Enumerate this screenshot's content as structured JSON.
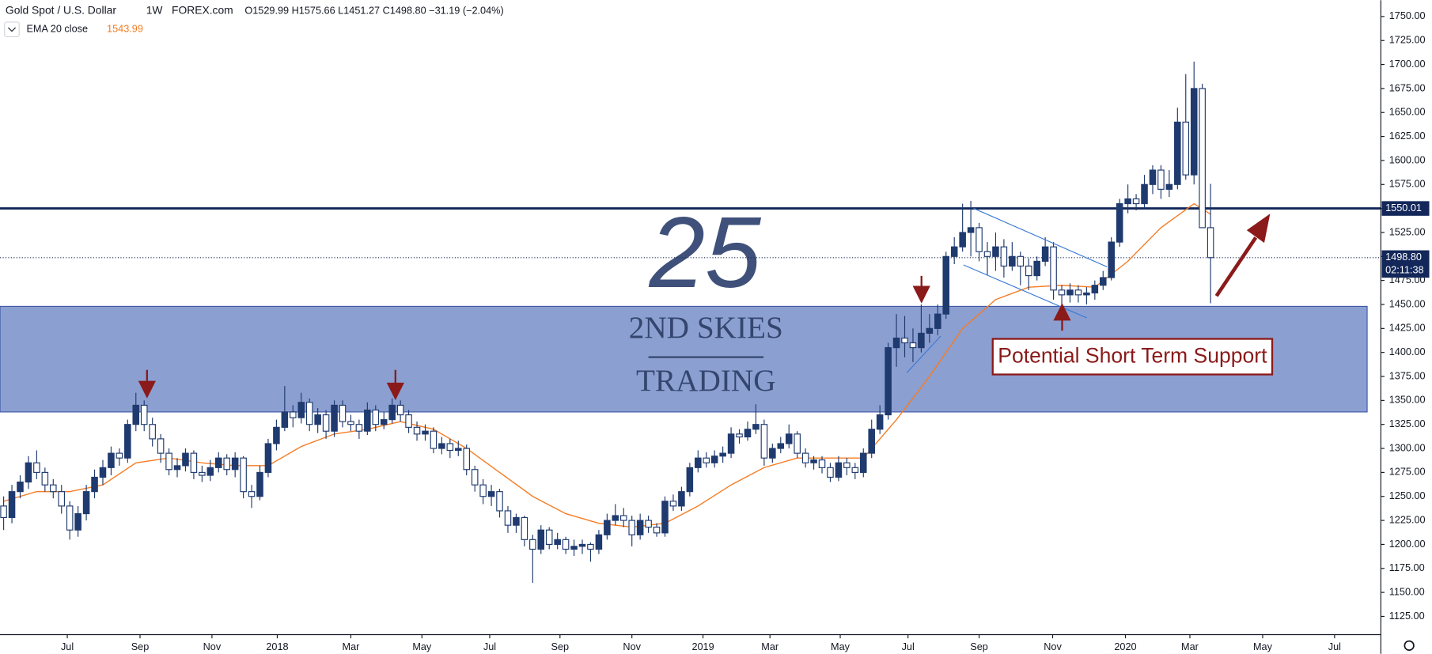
{
  "chart_data": {
    "type": "candlestick",
    "header": {
      "symbol": "Gold Spot / U.S. Dollar",
      "interval": "1W",
      "source": "FOREX.com",
      "ohlc": "O1529.99 H1575.66 L1451.27 C1498.80 −31.19 (−2.04%)"
    },
    "up_color": "#1f3a6e",
    "down_color": "#ffffff",
    "candles": [
      [
        1240,
        1250,
        1215,
        1228
      ],
      [
        1228,
        1262,
        1222,
        1255
      ],
      [
        1255,
        1272,
        1248,
        1265
      ],
      [
        1265,
        1292,
        1258,
        1285
      ],
      [
        1285,
        1298,
        1268,
        1275
      ],
      [
        1275,
        1280,
        1255,
        1262
      ],
      [
        1262,
        1268,
        1248,
        1255
      ],
      [
        1255,
        1262,
        1232,
        1240
      ],
      [
        1240,
        1245,
        1205,
        1215
      ],
      [
        1215,
        1240,
        1208,
        1232
      ],
      [
        1232,
        1262,
        1225,
        1255
      ],
      [
        1255,
        1278,
        1248,
        1270
      ],
      [
        1270,
        1288,
        1262,
        1280
      ],
      [
        1280,
        1302,
        1272,
        1295
      ],
      [
        1295,
        1300,
        1282,
        1290
      ],
      [
        1290,
        1330,
        1285,
        1325
      ],
      [
        1325,
        1358,
        1318,
        1345
      ],
      [
        1345,
        1350,
        1318,
        1325
      ],
      [
        1325,
        1332,
        1302,
        1310
      ],
      [
        1310,
        1315,
        1285,
        1295
      ],
      [
        1295,
        1300,
        1272,
        1278
      ],
      [
        1278,
        1290,
        1270,
        1282
      ],
      [
        1282,
        1300,
        1276,
        1295
      ],
      [
        1295,
        1298,
        1268,
        1275
      ],
      [
        1275,
        1282,
        1265,
        1272
      ],
      [
        1272,
        1288,
        1266,
        1280
      ],
      [
        1280,
        1296,
        1275,
        1290
      ],
      [
        1290,
        1294,
        1272,
        1278
      ],
      [
        1278,
        1296,
        1270,
        1290
      ],
      [
        1290,
        1292,
        1248,
        1255
      ],
      [
        1255,
        1262,
        1238,
        1250
      ],
      [
        1250,
        1282,
        1246,
        1275
      ],
      [
        1275,
        1310,
        1270,
        1305
      ],
      [
        1305,
        1330,
        1298,
        1322
      ],
      [
        1322,
        1365,
        1318,
        1338
      ],
      [
        1338,
        1345,
        1322,
        1332
      ],
      [
        1332,
        1358,
        1326,
        1348
      ],
      [
        1348,
        1352,
        1318,
        1325
      ],
      [
        1325,
        1342,
        1316,
        1335
      ],
      [
        1335,
        1340,
        1310,
        1318
      ],
      [
        1318,
        1350,
        1312,
        1345
      ],
      [
        1345,
        1350,
        1322,
        1328
      ],
      [
        1328,
        1335,
        1318,
        1325
      ],
      [
        1325,
        1330,
        1310,
        1318
      ],
      [
        1318,
        1348,
        1314,
        1340
      ],
      [
        1340,
        1345,
        1318,
        1325
      ],
      [
        1325,
        1338,
        1320,
        1330
      ],
      [
        1330,
        1352,
        1326,
        1345
      ],
      [
        1345,
        1350,
        1328,
        1335
      ],
      [
        1335,
        1340,
        1316,
        1322
      ],
      [
        1322,
        1328,
        1308,
        1315
      ],
      [
        1315,
        1325,
        1308,
        1318
      ],
      [
        1318,
        1322,
        1295,
        1300
      ],
      [
        1300,
        1312,
        1294,
        1305
      ],
      [
        1305,
        1310,
        1290,
        1298
      ],
      [
        1298,
        1308,
        1292,
        1300
      ],
      [
        1300,
        1304,
        1272,
        1278
      ],
      [
        1278,
        1282,
        1255,
        1262
      ],
      [
        1262,
        1268,
        1242,
        1250
      ],
      [
        1250,
        1262,
        1240,
        1255
      ],
      [
        1255,
        1258,
        1228,
        1235
      ],
      [
        1235,
        1240,
        1212,
        1220
      ],
      [
        1220,
        1232,
        1212,
        1228
      ],
      [
        1228,
        1230,
        1198,
        1205
      ],
      [
        1205,
        1210,
        1160,
        1195
      ],
      [
        1195,
        1220,
        1190,
        1215
      ],
      [
        1215,
        1218,
        1195,
        1200
      ],
      [
        1200,
        1212,
        1195,
        1205
      ],
      [
        1205,
        1208,
        1190,
        1195
      ],
      [
        1195,
        1205,
        1188,
        1198
      ],
      [
        1198,
        1205,
        1190,
        1200
      ],
      [
        1200,
        1202,
        1182,
        1195
      ],
      [
        1195,
        1215,
        1190,
        1210
      ],
      [
        1210,
        1232,
        1205,
        1225
      ],
      [
        1225,
        1242,
        1220,
        1230
      ],
      [
        1230,
        1238,
        1218,
        1225
      ],
      [
        1225,
        1230,
        1198,
        1210
      ],
      [
        1210,
        1232,
        1205,
        1225
      ],
      [
        1225,
        1230,
        1212,
        1218
      ],
      [
        1218,
        1222,
        1208,
        1212
      ],
      [
        1212,
        1250,
        1208,
        1245
      ],
      [
        1245,
        1252,
        1235,
        1240
      ],
      [
        1240,
        1260,
        1235,
        1255
      ],
      [
        1255,
        1285,
        1250,
        1280
      ],
      [
        1280,
        1298,
        1275,
        1290
      ],
      [
        1290,
        1296,
        1280,
        1285
      ],
      [
        1285,
        1298,
        1280,
        1292
      ],
      [
        1292,
        1302,
        1285,
        1295
      ],
      [
        1295,
        1322,
        1290,
        1315
      ],
      [
        1315,
        1320,
        1305,
        1312
      ],
      [
        1312,
        1328,
        1308,
        1320
      ],
      [
        1320,
        1346,
        1315,
        1325
      ],
      [
        1325,
        1330,
        1282,
        1290
      ],
      [
        1290,
        1305,
        1285,
        1300
      ],
      [
        1300,
        1312,
        1295,
        1305
      ],
      [
        1305,
        1325,
        1300,
        1315
      ],
      [
        1315,
        1318,
        1290,
        1295
      ],
      [
        1295,
        1300,
        1280,
        1285
      ],
      [
        1285,
        1292,
        1278,
        1288
      ],
      [
        1288,
        1292,
        1274,
        1280
      ],
      [
        1280,
        1285,
        1265,
        1270
      ],
      [
        1270,
        1292,
        1266,
        1285
      ],
      [
        1285,
        1290,
        1272,
        1280
      ],
      [
        1280,
        1285,
        1268,
        1275
      ],
      [
        1275,
        1300,
        1270,
        1295
      ],
      [
        1295,
        1330,
        1290,
        1320
      ],
      [
        1320,
        1345,
        1315,
        1335
      ],
      [
        1335,
        1410,
        1330,
        1405
      ],
      [
        1405,
        1440,
        1385,
        1415
      ],
      [
        1415,
        1438,
        1395,
        1410
      ],
      [
        1410,
        1425,
        1390,
        1405
      ],
      [
        1405,
        1450,
        1400,
        1420
      ],
      [
        1420,
        1440,
        1410,
        1425
      ],
      [
        1425,
        1450,
        1418,
        1440
      ],
      [
        1440,
        1505,
        1435,
        1500
      ],
      [
        1500,
        1520,
        1492,
        1510
      ],
      [
        1510,
        1555,
        1505,
        1525
      ],
      [
        1525,
        1558,
        1500,
        1530
      ],
      [
        1530,
        1535,
        1495,
        1505
      ],
      [
        1505,
        1515,
        1480,
        1500
      ],
      [
        1500,
        1525,
        1485,
        1510
      ],
      [
        1510,
        1518,
        1478,
        1490
      ],
      [
        1490,
        1515,
        1485,
        1500
      ],
      [
        1500,
        1505,
        1470,
        1490
      ],
      [
        1490,
        1498,
        1465,
        1480
      ],
      [
        1480,
        1500,
        1475,
        1495
      ],
      [
        1495,
        1520,
        1490,
        1510
      ],
      [
        1510,
        1515,
        1455,
        1465
      ],
      [
        1465,
        1470,
        1445,
        1460
      ],
      [
        1460,
        1472,
        1452,
        1465
      ],
      [
        1465,
        1470,
        1452,
        1460
      ],
      [
        1460,
        1468,
        1450,
        1462
      ],
      [
        1462,
        1475,
        1455,
        1470
      ],
      [
        1470,
        1485,
        1465,
        1478
      ],
      [
        1478,
        1520,
        1475,
        1515
      ],
      [
        1515,
        1560,
        1510,
        1555
      ],
      [
        1555,
        1575,
        1545,
        1560
      ],
      [
        1560,
        1565,
        1548,
        1555
      ],
      [
        1555,
        1585,
        1550,
        1575
      ],
      [
        1575,
        1595,
        1565,
        1590
      ],
      [
        1590,
        1595,
        1560,
        1570
      ],
      [
        1570,
        1590,
        1562,
        1575
      ],
      [
        1575,
        1655,
        1570,
        1640
      ],
      [
        1640,
        1690,
        1580,
        1585
      ],
      [
        1585,
        1703,
        1575,
        1675
      ],
      [
        1675,
        1680,
        1530,
        1529.99
      ],
      [
        1529.99,
        1575.66,
        1451.27,
        1498.8
      ]
    ],
    "ema": {
      "name": "EMA 20 close",
      "color": "#f57c24",
      "x": [
        0,
        4,
        8,
        12,
        16,
        20,
        24,
        28,
        32,
        36,
        40,
        44,
        48,
        52,
        56,
        60,
        64,
        68,
        72,
        76,
        80,
        84,
        88,
        92,
        96,
        100,
        104,
        108,
        112,
        116,
        120,
        124,
        128,
        132,
        136,
        140,
        144,
        146
      ],
      "values": [
        1245,
        1255,
        1255,
        1262,
        1285,
        1290,
        1285,
        1282,
        1282,
        1302,
        1315,
        1320,
        1328,
        1320,
        1300,
        1275,
        1250,
        1232,
        1222,
        1218,
        1222,
        1240,
        1262,
        1280,
        1290,
        1290,
        1290,
        1330,
        1375,
        1425,
        1455,
        1468,
        1470,
        1468,
        1495,
        1530,
        1555,
        1543.99
      ]
    },
    "xlim": [
      -0.44,
      166.6
    ],
    "xticks": [
      {
        "value": 7.7,
        "label": "Jul"
      },
      {
        "value": 16.5,
        "label": "Sep"
      },
      {
        "value": 25.2,
        "label": "Nov"
      },
      {
        "value": 33.1,
        "label": "2018"
      },
      {
        "value": 42,
        "label": "Mar"
      },
      {
        "value": 50.6,
        "label": "May"
      },
      {
        "value": 58.8,
        "label": "Jul"
      },
      {
        "value": 67.3,
        "label": "Sep"
      },
      {
        "value": 76,
        "label": "Nov"
      },
      {
        "value": 84.6,
        "label": "2019"
      },
      {
        "value": 92.7,
        "label": "Mar"
      },
      {
        "value": 101.2,
        "label": "May"
      },
      {
        "value": 109.4,
        "label": "Jul"
      },
      {
        "value": 118,
        "label": "Sep"
      },
      {
        "value": 126.9,
        "label": "Nov"
      },
      {
        "value": 135.7,
        "label": "2020"
      },
      {
        "value": 143.5,
        "label": "Mar"
      },
      {
        "value": 152.3,
        "label": "May"
      },
      {
        "value": 161,
        "label": "Jul"
      }
    ],
    "ylim": [
      1106,
      1767
    ],
    "yticks": [
      {
        "value": 1125,
        "label": "1125.00"
      },
      {
        "value": 1150,
        "label": "1150.00"
      },
      {
        "value": 1175,
        "label": "1175.00"
      },
      {
        "value": 1200,
        "label": "1200.00"
      },
      {
        "value": 1225,
        "label": "1225.00"
      },
      {
        "value": 1250,
        "label": "1250.00"
      },
      {
        "value": 1275,
        "label": "1275.00"
      },
      {
        "value": 1300,
        "label": "1300.00"
      },
      {
        "value": 1325,
        "label": "1325.00"
      },
      {
        "value": 1350,
        "label": "1350.00"
      },
      {
        "value": 1375,
        "label": "1375.00"
      },
      {
        "value": 1400,
        "label": "1400.00"
      },
      {
        "value": 1425,
        "label": "1425.00"
      },
      {
        "value": 1450,
        "label": "1450.00"
      },
      {
        "value": 1475,
        "label": "1475.00"
      },
      {
        "value": 1500,
        "label": "1500.00"
      },
      {
        "value": 1525,
        "label": "1525.00"
      },
      {
        "value": 1550,
        "label": "1550.00"
      },
      {
        "value": 1575,
        "label": "1575.00"
      },
      {
        "value": 1600,
        "label": "1600.00"
      },
      {
        "value": 1625,
        "label": "1625.00"
      },
      {
        "value": 1650,
        "label": "1650.00"
      },
      {
        "value": 1675,
        "label": "1675.00"
      },
      {
        "value": 1700,
        "label": "1700.00"
      },
      {
        "value": 1725,
        "label": "1725.00"
      },
      {
        "value": 1750,
        "label": "1750.00"
      }
    ],
    "resistance": 1550.01,
    "price_line": {
      "value": 1498.8,
      "label": "1498.80"
    },
    "countdown": "02:11:38",
    "zone": [
      1338,
      1448
    ],
    "annotation": "Potential Short Term Support",
    "watermark": {
      "number": "25",
      "line1": "2ND SKIES",
      "line2": "TRADING"
    }
  }
}
